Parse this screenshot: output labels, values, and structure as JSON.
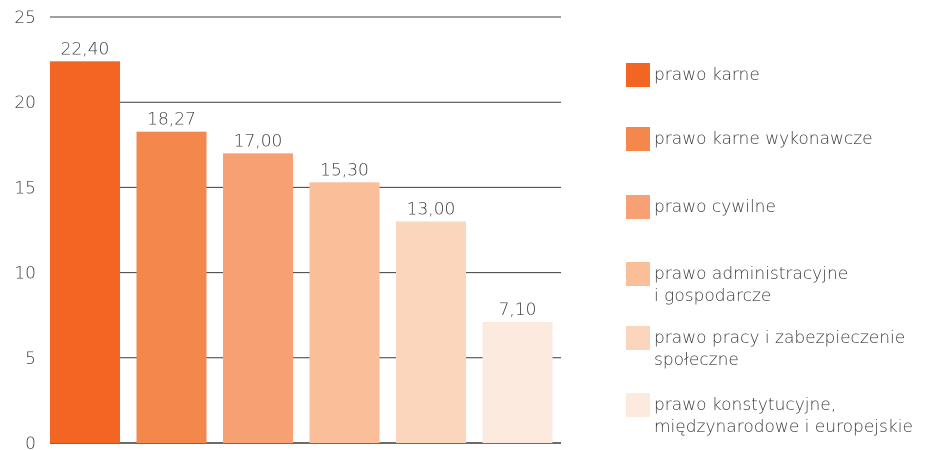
{
  "chart_data": {
    "type": "bar",
    "categories": [
      "prawo karne",
      "prawo karne wykonawcze",
      "prawo cywilne",
      "prawo administracyjne\ni gospodarcze",
      "prawo pracy i zabezpieczenie\nspołeczne",
      "prawo konstytucyjne,\nmiędzynarodowe i europejskie"
    ],
    "values": [
      22.4,
      18.27,
      17.0,
      15.3,
      13.0,
      7.1
    ],
    "value_labels": [
      "22,40",
      "18,27",
      "17,00",
      "15,30",
      "13,00",
      "7,10"
    ],
    "colors": [
      "#f26522",
      "#f4874b",
      "#f7a073",
      "#fabe99",
      "#fcd5bd",
      "#fdeadf"
    ],
    "yticks": [
      "0",
      "5",
      "10",
      "15",
      "20",
      "25"
    ],
    "ylim": [
      0,
      25
    ],
    "grid": true,
    "legend_position": "right"
  }
}
